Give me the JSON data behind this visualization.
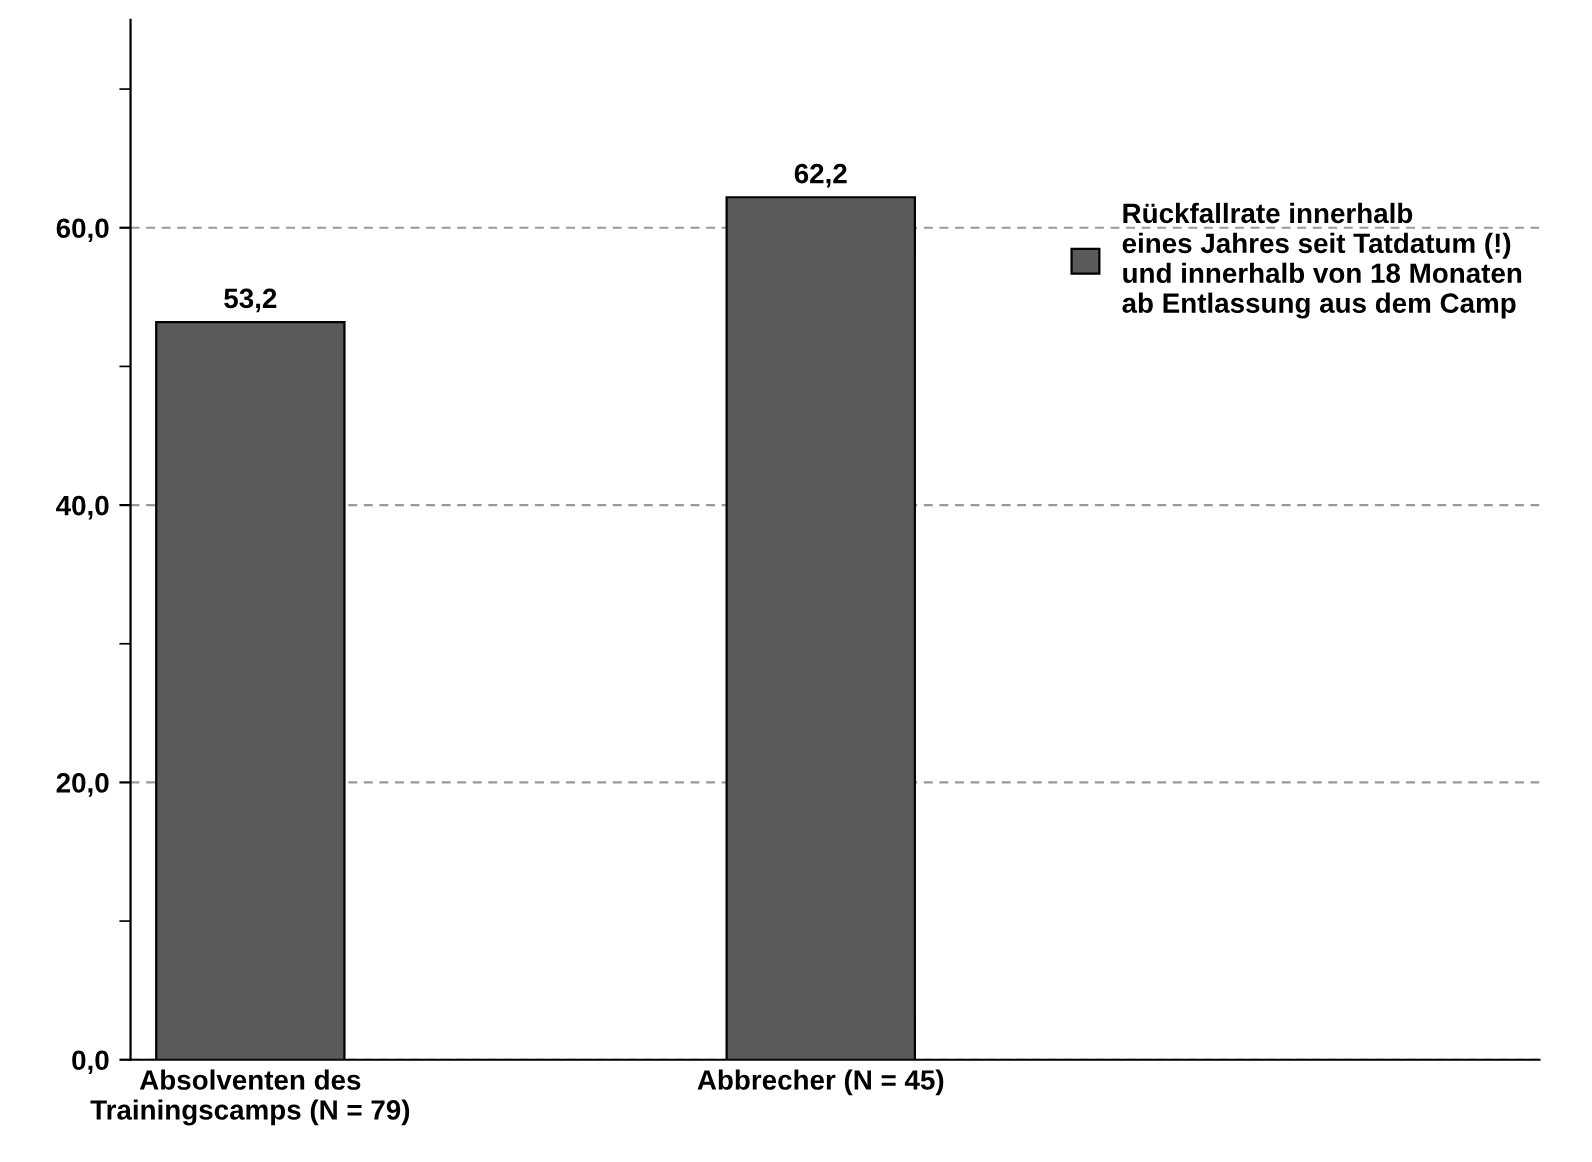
{
  "chart_data": {
    "type": "bar",
    "categories": [
      "Absolventen des\nTrainingscamps (N = 79)",
      "Abbrecher (N = 45)"
    ],
    "series": [
      {
        "name": "Rückfallrate innerhalb\neines Jahres seit Tatdatum (!)\nund innerhalb von 18 Monaten\nab Entlassung aus dem Camp",
        "color": "#5a5a5a",
        "values": [
          53.2,
          62.2
        ],
        "value_labels": [
          "53,2",
          "62,2"
        ]
      }
    ],
    "ylim": [
      0,
      75
    ],
    "yticks": [
      {
        "value": 0,
        "label": "0,0"
      },
      {
        "value": 10,
        "label": null
      },
      {
        "value": 20,
        "label": "20,0"
      },
      {
        "value": 30,
        "label": null
      },
      {
        "value": 40,
        "label": "40,0"
      },
      {
        "value": 50,
        "label": null
      },
      {
        "value": 60,
        "label": "60,0"
      },
      {
        "value": 70,
        "label": null
      }
    ],
    "grid": "y",
    "legend": "right"
  }
}
